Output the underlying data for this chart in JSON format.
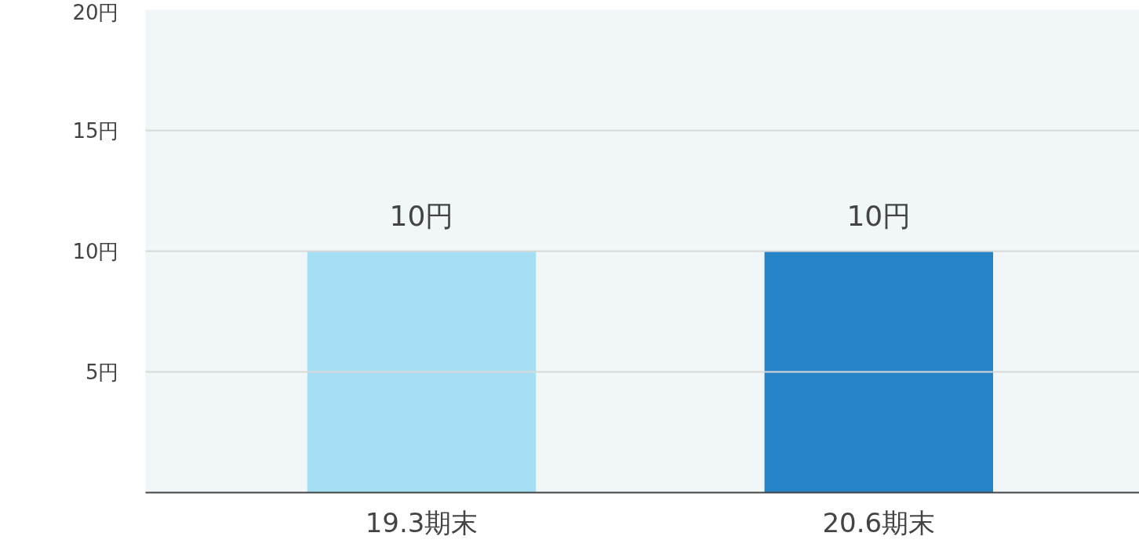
{
  "chart_data": {
    "type": "bar",
    "categories": [
      "19.3期末",
      "20.6期末"
    ],
    "values": [
      10,
      10
    ],
    "colors": [
      "#a6def4",
      "#2683c6"
    ],
    "value_labels": [
      "10円",
      "10円"
    ],
    "ylim": [
      0,
      20
    ],
    "yticks": [
      {
        "value": 5,
        "label": "5円"
      },
      {
        "value": 10,
        "label": "10円"
      },
      {
        "value": 15,
        "label": "15円"
      },
      {
        "value": 20,
        "label": "20円"
      }
    ],
    "grid": "y"
  }
}
